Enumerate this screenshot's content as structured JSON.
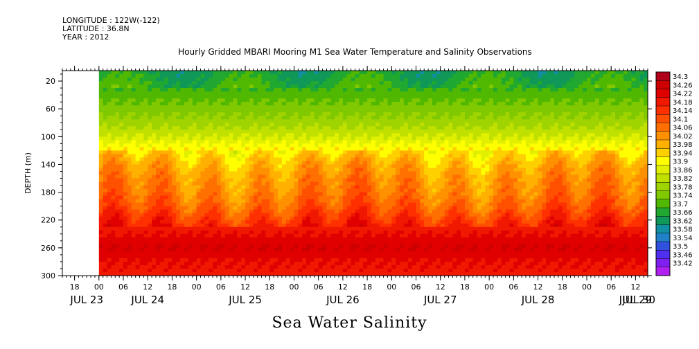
{
  "header": {
    "longitude": "LONGITUDE : 122W(-122)",
    "latitude": "LATITUDE : 36.8N",
    "year": "YEAR : 2012"
  },
  "chart_data": {
    "type": "heatmap",
    "title": "Hourly Gridded MBARI Mooring M1 Sea Water Temperature and Salinity Observations",
    "footer_label": "Sea Water Salinity",
    "ylabel": "DEPTH (m)",
    "y_axis_inverted": true,
    "ylim": [
      300,
      5
    ],
    "y_ticks": [
      20,
      60,
      100,
      140,
      180,
      220,
      260,
      300
    ],
    "xlim_hours": [
      -9,
      135
    ],
    "x_hour_ticks": [
      {
        "t": -6,
        "label": "18"
      },
      {
        "t": 0,
        "label": "00"
      },
      {
        "t": 6,
        "label": "06"
      },
      {
        "t": 12,
        "label": "12"
      },
      {
        "t": 18,
        "label": "18"
      },
      {
        "t": 24,
        "label": "00"
      },
      {
        "t": 30,
        "label": "06"
      },
      {
        "t": 36,
        "label": "12"
      },
      {
        "t": 42,
        "label": "18"
      },
      {
        "t": 48,
        "label": "00"
      },
      {
        "t": 54,
        "label": "06"
      },
      {
        "t": 60,
        "label": "12"
      },
      {
        "t": 66,
        "label": "18"
      },
      {
        "t": 72,
        "label": "00"
      },
      {
        "t": 78,
        "label": "06"
      },
      {
        "t": 84,
        "label": "12"
      },
      {
        "t": 90,
        "label": "18"
      },
      {
        "t": 96,
        "label": "00"
      },
      {
        "t": 102,
        "label": "06"
      },
      {
        "t": 108,
        "label": "12"
      },
      {
        "t": 114,
        "label": "18"
      },
      {
        "t": 120,
        "label": "00"
      },
      {
        "t": 126,
        "label": "06"
      },
      {
        "t": 132,
        "label": "12"
      }
    ],
    "x_day_labels": [
      {
        "t": -3,
        "label": "JUL 23"
      },
      {
        "t": 12,
        "label": "JUL 24"
      },
      {
        "t": 36,
        "label": "JUL 25"
      },
      {
        "t": 60,
        "label": "JUL 26"
      },
      {
        "t": 84,
        "label": "JUL 27"
      },
      {
        "t": 108,
        "label": "JUL 28"
      },
      {
        "t": 132,
        "label": "JUL 29"
      },
      {
        "t": 150,
        "label": "JUL 30"
      }
    ],
    "data_start_hour": 0,
    "colorbar": {
      "levels": [
        34.3,
        34.26,
        34.22,
        34.18,
        34.14,
        34.1,
        34.06,
        34.02,
        33.98,
        33.94,
        33.9,
        33.86,
        33.82,
        33.78,
        33.74,
        33.7,
        33.66,
        33.62,
        33.58,
        33.54,
        33.5,
        33.46,
        33.42
      ],
      "colors": [
        "#b0001a",
        "#cc0000",
        "#e00000",
        "#f01800",
        "#ff3000",
        "#ff5000",
        "#ff7000",
        "#ff9000",
        "#ffb000",
        "#ffd000",
        "#ffff00",
        "#e0f000",
        "#c0e000",
        "#a0d400",
        "#80c800",
        "#50b800",
        "#20a830",
        "#109858",
        "#1090a0",
        "#2080c8",
        "#3050e0",
        "#5030f0",
        "#8020f0",
        "#b020f0"
      ]
    },
    "salinity_profile_by_depth": {
      "depth": [
        5,
        20,
        40,
        60,
        80,
        100,
        120,
        140,
        160,
        180,
        200,
        220,
        240,
        260,
        280,
        300
      ],
      "salinity": [
        33.66,
        33.68,
        33.72,
        33.76,
        33.8,
        33.86,
        33.94,
        34.0,
        34.04,
        34.06,
        34.1,
        34.16,
        34.22,
        34.26,
        34.22,
        34.2
      ]
    }
  }
}
